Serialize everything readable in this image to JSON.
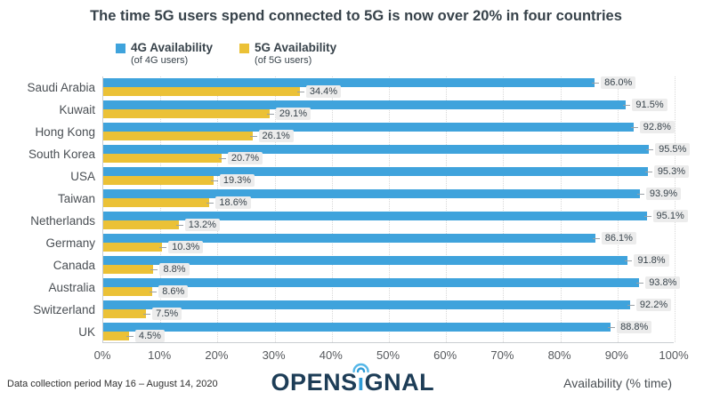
{
  "title": "The time 5G users spend connected to 5G is now over 20% in four countries",
  "legend": {
    "items": [
      {
        "label": "4G Availability",
        "sublabel": "(of 4G users)",
        "color": "#3FA3DC"
      },
      {
        "label": "5G Availability",
        "sublabel": "(of 5G users)",
        "color": "#EBC136"
      }
    ]
  },
  "chart_data": {
    "type": "bar",
    "orientation": "horizontal",
    "title": "The time 5G users spend connected to 5G is now over 20% in four countries",
    "categories": [
      "Saudi Arabia",
      "Kuwait",
      "Hong Kong",
      "South Korea",
      "USA",
      "Taiwan",
      "Netherlands",
      "Germany",
      "Canada",
      "Australia",
      "Switzerland",
      "UK"
    ],
    "series": [
      {
        "name": "4G Availability (of 4G users)",
        "color": "#3FA3DC",
        "values": [
          86.0,
          91.5,
          92.8,
          95.5,
          95.3,
          93.9,
          95.1,
          86.1,
          91.8,
          93.8,
          92.2,
          88.8
        ]
      },
      {
        "name": "5G Availability (of 5G users)",
        "color": "#EBC136",
        "values": [
          34.4,
          29.1,
          26.1,
          20.7,
          19.3,
          18.6,
          13.2,
          10.3,
          8.8,
          8.6,
          7.5,
          4.5
        ]
      }
    ],
    "value_suffix": "%",
    "xlim": [
      0,
      100
    ],
    "x_ticks": [
      "0%",
      "10%",
      "20%",
      "30%",
      "40%",
      "50%",
      "60%",
      "70%",
      "80%",
      "90%",
      "100%"
    ],
    "xlabel": "Availability (% time)",
    "grid": "vertical-dotted",
    "legend_position": "top"
  },
  "footer": {
    "note": "Data collection period May 16 – August 14, 2020",
    "logo_left": "OPENS",
    "logo_i": "ı",
    "logo_right": "GNAL",
    "xlabel": "Availability (% time)"
  },
  "colors": {
    "bar_4g": "#3FA3DC",
    "bar_5g": "#EBC136",
    "title_text": "#37424A",
    "logo_navy": "#1D3D57",
    "logo_blue": "#2E9BD6",
    "chip_bg": "#ECECEC",
    "gridline": "#D8D8D8"
  }
}
